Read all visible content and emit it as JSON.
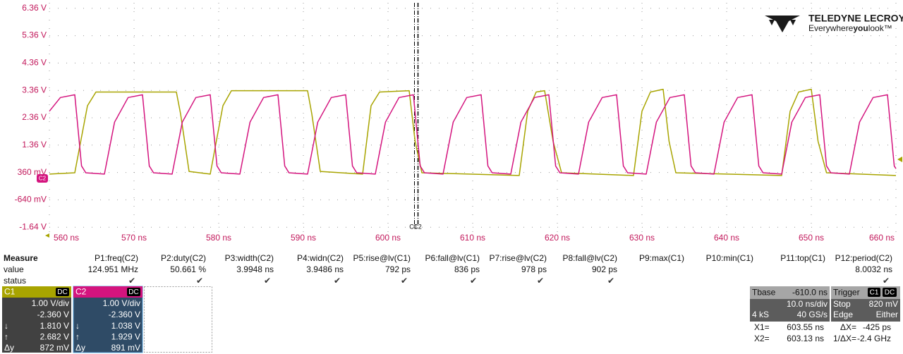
{
  "chart_data": {
    "type": "line",
    "xlim": [
      560,
      660
    ],
    "ylim": [
      -1.84,
      6.56
    ],
    "xticks": [
      {
        "value": 560,
        "label": "560 ns"
      },
      {
        "value": 570,
        "label": "570 ns"
      },
      {
        "value": 580,
        "label": "580 ns"
      },
      {
        "value": 590,
        "label": "590 ns"
      },
      {
        "value": 600,
        "label": "600 ns"
      },
      {
        "value": 610,
        "label": "610 ns"
      },
      {
        "value": 620,
        "label": "620 ns"
      },
      {
        "value": 630,
        "label": "630 ns"
      },
      {
        "value": 640,
        "label": "640 ns"
      },
      {
        "value": 650,
        "label": "650 ns"
      },
      {
        "value": 660,
        "label": "660 ns"
      }
    ],
    "yticks": [
      {
        "value": 6.36,
        "label": "6.36 V"
      },
      {
        "value": 5.36,
        "label": "5.36 V"
      },
      {
        "value": 4.36,
        "label": "4.36 V"
      },
      {
        "value": 3.36,
        "label": "3.36 V"
      },
      {
        "value": 2.36,
        "label": "2.36 V"
      },
      {
        "value": 1.36,
        "label": "1.36 V"
      },
      {
        "value": 0.36,
        "label": "360 mV"
      },
      {
        "value": -0.64,
        "label": "-640 mV"
      },
      {
        "value": -1.64,
        "label": "-1.64 V"
      }
    ],
    "grid": true,
    "series": [
      {
        "name": "C1",
        "color": "#a8a400",
        "x": [
          560,
          563,
          564.5,
          565.5,
          575,
          575.5,
          576.5,
          579,
          580.5,
          581.5,
          590.5,
          591,
          592,
          597,
          598,
          599,
          602.5,
          603.2,
          604,
          615.5,
          616.5,
          617.5,
          618.5,
          619.5,
          620.5,
          629,
          630,
          631,
          632.5,
          633.2,
          634,
          646.5,
          647.5,
          648.5,
          650,
          650.8,
          651.8,
          660
        ],
        "values": [
          0.3,
          0.35,
          2.8,
          3.3,
          3.3,
          2.5,
          0.4,
          0.3,
          2.8,
          3.35,
          3.35,
          2.5,
          0.4,
          0.3,
          2.8,
          3.3,
          3.35,
          1.5,
          0.35,
          0.25,
          2.6,
          3.3,
          3.35,
          1.5,
          0.35,
          0.25,
          2.6,
          3.3,
          3.4,
          1.5,
          0.35,
          0.25,
          2.6,
          3.3,
          3.4,
          1.5,
          0.35,
          0.25
        ]
      },
      {
        "name": "C2",
        "color": "#d4147e",
        "x": [
          560,
          561.3,
          563,
          563.8,
          564.3,
          566.5,
          567.7,
          569.3,
          571,
          571.8,
          572.3,
          574.5,
          575.7,
          577.3,
          579,
          579.8,
          580.3,
          582.5,
          583.7,
          585.3,
          587,
          587.8,
          588.3,
          590.5,
          591.7,
          593.3,
          595,
          595.8,
          596.3,
          598.5,
          599.7,
          601.3,
          603,
          603.8,
          604.3,
          606.5,
          607.7,
          609.3,
          611,
          611.8,
          612.3,
          614.5,
          615.7,
          617.3,
          619,
          619.8,
          620.3,
          622.5,
          623.7,
          625.3,
          627,
          627.8,
          628.3,
          630.5,
          631.7,
          633.3,
          635,
          635.8,
          636.3,
          638.5,
          639.7,
          641.3,
          643,
          643.8,
          644.3,
          646.5,
          647.7,
          649.3,
          651,
          651.8,
          652.3,
          654.5,
          655.7,
          657.3,
          659,
          659.8,
          660
        ],
        "values": [
          2.6,
          3.1,
          3.2,
          0.6,
          0.35,
          0.3,
          2.2,
          3.1,
          3.2,
          0.6,
          0.35,
          0.3,
          2.2,
          3.1,
          3.2,
          0.6,
          0.35,
          0.3,
          2.2,
          3.1,
          3.2,
          0.6,
          0.35,
          0.3,
          2.2,
          3.1,
          3.2,
          0.6,
          0.35,
          0.3,
          2.2,
          3.1,
          3.2,
          0.6,
          0.35,
          0.3,
          2.2,
          3.1,
          3.2,
          0.6,
          0.35,
          0.3,
          2.2,
          3.1,
          3.2,
          0.6,
          0.35,
          0.3,
          2.2,
          3.1,
          3.2,
          0.6,
          0.35,
          0.3,
          2.2,
          3.1,
          3.2,
          0.6,
          0.35,
          0.3,
          2.2,
          3.1,
          3.2,
          0.6,
          0.35,
          0.3,
          2.2,
          3.1,
          3.2,
          0.6,
          0.35,
          0.3,
          2.2,
          3.1,
          3.2,
          0.6,
          0.5
        ]
      }
    ]
  },
  "logo": {
    "brand": "TELEDYNE LECROY",
    "tagline_pre": "Everywhere",
    "tagline_bold": "you",
    "tagline_post": "look™"
  },
  "measure": {
    "title": "Measure",
    "row_labels": [
      "value",
      "status"
    ],
    "columns": [
      {
        "header": "P1:freq(C2)",
        "value": "124.951 MHz",
        "status": "✔"
      },
      {
        "header": "P2:duty(C2)",
        "value": "50.661 %",
        "status": "✔"
      },
      {
        "header": "P3:width(C2)",
        "value": "3.9948 ns",
        "status": "✔"
      },
      {
        "header": "P4:widn(C2)",
        "value": "3.9486 ns",
        "status": "✔"
      },
      {
        "header": "P5:rise@lv(C1)",
        "value": "792 ps",
        "status": "✔"
      },
      {
        "header": "P6:fall@lv(C1)",
        "value": "836 ps",
        "status": "✔"
      },
      {
        "header": "P7:rise@lv(C2)",
        "value": "978 ps",
        "status": "✔"
      },
      {
        "header": "P8:fall@lv(C2)",
        "value": "902 ps",
        "status": "✔"
      },
      {
        "header": "P9:max(C1)"
      },
      {
        "header": "P10:min(C1)"
      },
      {
        "header": "P11:top(C1)"
      },
      {
        "header": "P12:period(C2)",
        "value": "8.0032 ns",
        "status": "✔"
      }
    ]
  },
  "channels": [
    {
      "coupling": "DC",
      "scale": "1.00 V/div",
      "offset": "-2.360 V",
      "rows": [
        [
          "↓",
          "1.810 V"
        ],
        [
          "↑",
          "2.682 V"
        ],
        [
          "Δy",
          "872 mV"
        ]
      ]
    },
    {
      "coupling": "DC",
      "scale": "1.00 V/div",
      "offset": "-2.360 V",
      "rows": [
        [
          "↓",
          "1.038 V"
        ],
        [
          "↑",
          "1.929 V"
        ],
        [
          "Δy",
          "891 mV"
        ]
      ]
    }
  ],
  "timebase": {
    "label": "Tbase",
    "delay": "-610.0 ns",
    "scale": "10.0 ns/div",
    "samples": "4 kS",
    "rate": "40 GS/s"
  },
  "trigger": {
    "label": "Trigger",
    "source": "C1",
    "coupling": "DC",
    "mode": "Stop",
    "level": "820 mV",
    "type": "Edge",
    "slope": "Either"
  },
  "cursor_readout": [
    [
      "X1=",
      "603.55 ns",
      "ΔX=",
      "-425 ps"
    ],
    [
      "X2=",
      "603.13 ns",
      "1/ΔX=",
      "-2.4 GHz"
    ]
  ]
}
